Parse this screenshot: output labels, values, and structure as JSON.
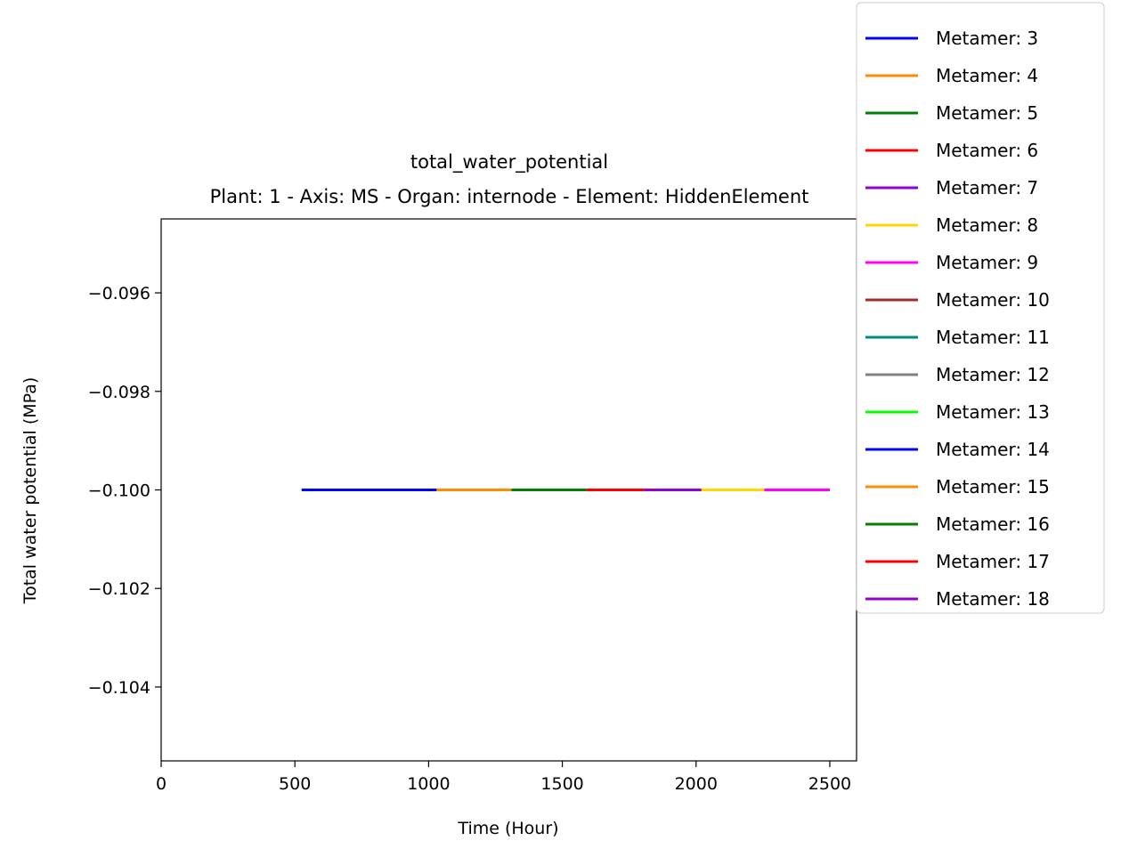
{
  "chart_data": {
    "type": "line",
    "title": "total_water_potential",
    "subtitle": "Plant: 1 - Axis: MS - Organ: internode - Element: HiddenElement",
    "xlabel": "Time (Hour)",
    "ylabel": "Total water potential (MPa)",
    "xlim": [
      0,
      2600
    ],
    "ylim": [
      -0.1055,
      -0.0945
    ],
    "xticks": [
      0,
      500,
      1000,
      1500,
      2000,
      2500
    ],
    "xtick_labels": [
      "0",
      "500",
      "1000",
      "1500",
      "2000",
      "2500"
    ],
    "yticks": [
      -0.096,
      -0.098,
      -0.1,
      -0.102,
      -0.104
    ],
    "ytick_labels": [
      "−0.096",
      "−0.098",
      "−0.100",
      "−0.102",
      "−0.104"
    ],
    "grid": false,
    "legend_position": "upper-right-outside",
    "series": [
      {
        "name": "Metamer: 3",
        "color": "#0000ff",
        "x": [
          525,
          1030
        ],
        "y": [
          -0.1,
          -0.1
        ]
      },
      {
        "name": "Metamer: 4",
        "color": "#ff8c00",
        "x": [
          1030,
          1310
        ],
        "y": [
          -0.1,
          -0.1
        ]
      },
      {
        "name": "Metamer: 5",
        "color": "#008000",
        "x": [
          1310,
          1590
        ],
        "y": [
          -0.1,
          -0.1
        ]
      },
      {
        "name": "Metamer: 6",
        "color": "#ff0000",
        "x": [
          1590,
          1805
        ],
        "y": [
          -0.1,
          -0.1
        ]
      },
      {
        "name": "Metamer: 7",
        "color": "#9400d3",
        "x": [
          1805,
          2020
        ],
        "y": [
          -0.1,
          -0.1
        ]
      },
      {
        "name": "Metamer: 8",
        "color": "#ffd700",
        "x": [
          2020,
          2255
        ],
        "y": [
          -0.1,
          -0.1
        ]
      },
      {
        "name": "Metamer: 9",
        "color": "#ff00ff",
        "x": [
          2255,
          2500
        ],
        "y": [
          -0.1,
          -0.1
        ]
      },
      {
        "name": "Metamer: 10",
        "color": "#a52a2a",
        "x": [],
        "y": []
      },
      {
        "name": "Metamer: 11",
        "color": "#008b8b",
        "x": [],
        "y": []
      },
      {
        "name": "Metamer: 12",
        "color": "#808080",
        "x": [],
        "y": []
      },
      {
        "name": "Metamer: 13",
        "color": "#00ff00",
        "x": [],
        "y": []
      },
      {
        "name": "Metamer: 14",
        "color": "#0000ff",
        "x": [],
        "y": []
      },
      {
        "name": "Metamer: 15",
        "color": "#ff8c00",
        "x": [],
        "y": []
      },
      {
        "name": "Metamer: 16",
        "color": "#008000",
        "x": [],
        "y": []
      },
      {
        "name": "Metamer: 17",
        "color": "#ff0000",
        "x": [],
        "y": []
      },
      {
        "name": "Metamer: 18",
        "color": "#9400d3",
        "x": [],
        "y": []
      }
    ]
  }
}
